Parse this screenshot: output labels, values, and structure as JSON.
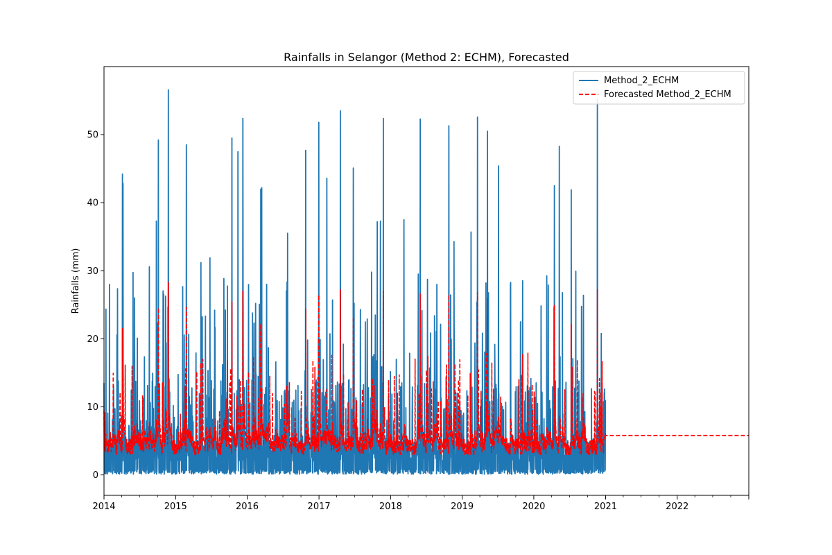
{
  "chart_data": {
    "type": "line",
    "title": "Rainfalls in Selangor (Method 2: ECHM), Forecasted",
    "xlabel": "",
    "ylabel": "Rainfalls (mm)",
    "xlim": [
      "2014-01-01",
      "2023-01-01"
    ],
    "ylim": [
      -3,
      60
    ],
    "x_ticks": [
      "2014",
      "2015",
      "2016",
      "2017",
      "2018",
      "2019",
      "2020",
      "2021",
      "2022"
    ],
    "y_ticks": [
      0,
      10,
      20,
      30,
      40,
      50
    ],
    "grid": false,
    "legend_position": "top-right",
    "series": [
      {
        "name": "Method_2_ECHM",
        "color": "#1f77b4",
        "style": "solid",
        "x": [
          "2014-01-01",
          "2014-04-05",
          "2014-04-08",
          "2014-06-20",
          "2014-08-20",
          "2014-09-25",
          "2014-10-05",
          "2014-11-25",
          "2015-02-25",
          "2015-05-10",
          "2015-06-25",
          "2015-10-15",
          "2015-11-15",
          "2015-12-10",
          "2016-03-10",
          "2016-03-15",
          "2016-07-25",
          "2016-10-25",
          "2016-12-31",
          "2017-02-10",
          "2017-04-20",
          "2017-06-25",
          "2017-10-25",
          "2017-11-10",
          "2017-11-25",
          "2018-03-10",
          "2018-06-01",
          "2018-08-25",
          "2018-10-25",
          "2018-11-20",
          "2019-02-15",
          "2019-03-20",
          "2019-05-10",
          "2019-07-05",
          "2019-09-05",
          "2019-10-25",
          "2020-04-15",
          "2020-05-10",
          "2020-07-10",
          "2020-09-10",
          "2020-11-20",
          "2020-12-31"
        ],
        "values": [
          13.5,
          44.2,
          42.8,
          20.1,
          30.6,
          37.3,
          49.2,
          56.6,
          48.5,
          31.2,
          31.9,
          49.5,
          47.5,
          52.4,
          42.0,
          42.2,
          35.5,
          47.7,
          51.8,
          43.6,
          53.5,
          45.1,
          37.2,
          37.3,
          52.4,
          37.5,
          52.3,
          28.0,
          51.3,
          34.3,
          35.7,
          52.6,
          50.5,
          45.4,
          28.3,
          22.5,
          42.5,
          48.3,
          41.9,
          26.4,
          55.2,
          11.0
        ]
      },
      {
        "name": "Forecasted Method_2_ECHM",
        "color": "#ff0000",
        "style": "dashed",
        "x": [
          "2014-01-01",
          "2014-04-05",
          "2014-10-05",
          "2014-11-25",
          "2015-02-25",
          "2015-05-20",
          "2015-10-15",
          "2015-12-10",
          "2016-03-10",
          "2016-10-25",
          "2016-12-31",
          "2017-04-20",
          "2017-06-25",
          "2017-11-25",
          "2018-06-01",
          "2018-10-25",
          "2019-03-20",
          "2019-05-10",
          "2020-04-15",
          "2020-07-10",
          "2020-11-20",
          "2021-01-01",
          "2022-12-31"
        ],
        "values": [
          9.5,
          21.5,
          24.6,
          28.3,
          24.6,
          17.0,
          25.4,
          27.0,
          22.2,
          24.4,
          26.5,
          27.2,
          23.2,
          27.0,
          26.6,
          26.5,
          26.8,
          25.9,
          25.0,
          22.1,
          27.3,
          5.8,
          5.8
        ]
      }
    ]
  }
}
